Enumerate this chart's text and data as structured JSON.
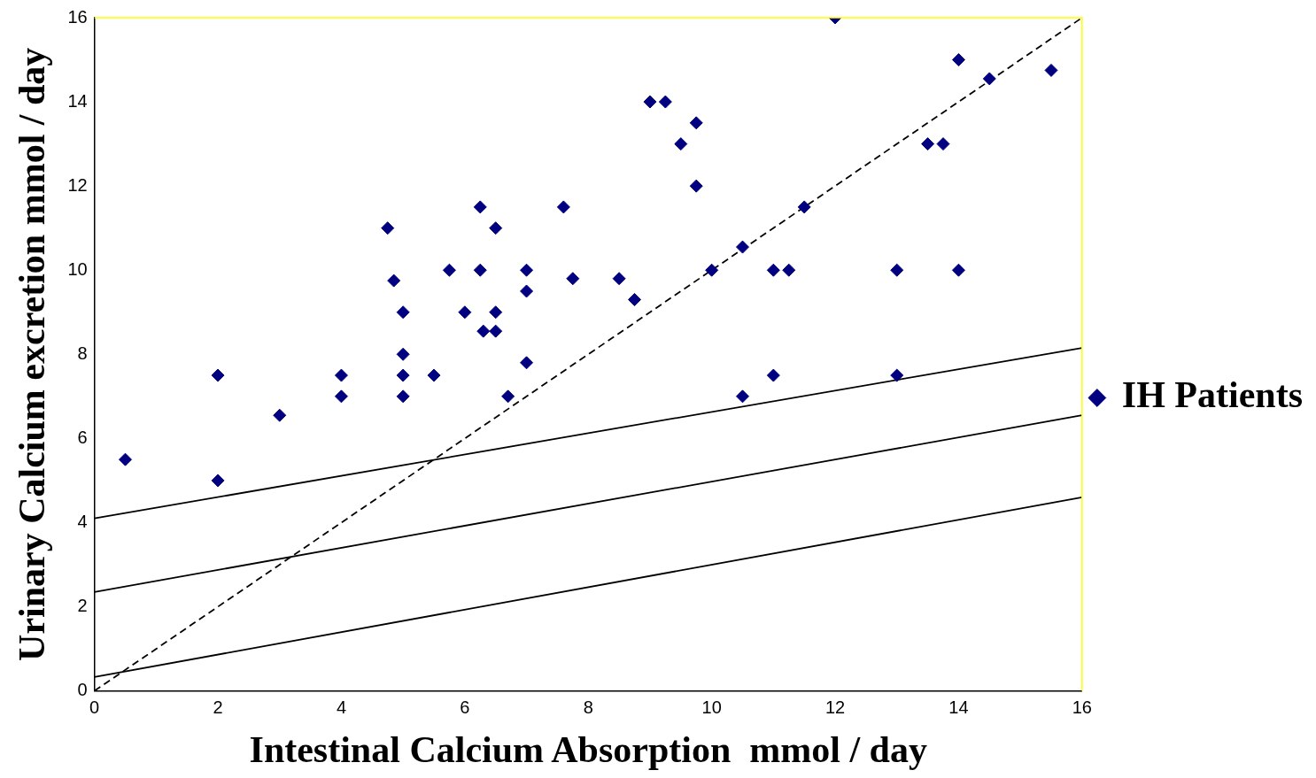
{
  "chart_data": {
    "type": "scatter",
    "xlabel": "Intestinal Calcium Absorption  mmol / day",
    "ylabel": "Urinary Calcium excretion mmol / day",
    "xlim": [
      0,
      16
    ],
    "xticks": [
      0,
      2,
      4,
      6,
      8,
      10,
      12,
      14,
      16
    ],
    "ylim": [
      0,
      16
    ],
    "yticks": [
      0,
      2,
      4,
      6,
      8,
      10,
      12,
      14,
      16
    ],
    "grid": false,
    "legend": "right",
    "marker": "diamond",
    "series": [
      {
        "name": "IH Patients",
        "color": "#000080",
        "x": [
          0.5,
          2,
          2,
          3,
          4,
          4,
          4.75,
          4.85,
          5,
          5,
          5,
          5,
          5.5,
          5.75,
          6,
          6.25,
          6.25,
          6.3,
          6.5,
          6.5,
          6.5,
          6.7,
          7,
          7,
          7,
          7.6,
          7.75,
          8.5,
          8.75,
          9,
          9.25,
          9.5,
          9.75,
          9.75,
          10,
          10.5,
          10.5,
          11,
          11,
          11.25,
          11.5,
          12,
          13,
          13,
          13.5,
          13.75,
          14,
          14,
          14.5,
          15.5
        ],
        "values": [
          5.5,
          5,
          7.5,
          6.55,
          7,
          7.5,
          11,
          9.75,
          9,
          8,
          7.5,
          7,
          7.5,
          10,
          9,
          11.5,
          10,
          8.55,
          11,
          9,
          8.55,
          7,
          10,
          9.5,
          7.8,
          11.5,
          9.8,
          9.8,
          9.3,
          14,
          14,
          13,
          13.5,
          12,
          10,
          10.55,
          7,
          10,
          7.5,
          10,
          11.5,
          16,
          10,
          7.5,
          13,
          13,
          15,
          10,
          14.55,
          14.75
        ]
      },
      {
        "type": "line",
        "color": "#000000",
        "line_style": "solid",
        "marker": "none",
        "x": [
          0,
          16
        ],
        "values": [
          4.1,
          8.15
        ]
      },
      {
        "type": "line",
        "color": "#000000",
        "line_style": "solid",
        "marker": "none",
        "x": [
          0,
          16
        ],
        "values": [
          2.35,
          6.55
        ]
      },
      {
        "type": "line",
        "color": "#000000",
        "line_style": "solid",
        "marker": "none",
        "x": [
          0,
          16
        ],
        "values": [
          0.33,
          4.6
        ]
      },
      {
        "type": "line",
        "color": "#000000",
        "line_style": "dashed",
        "marker": "none",
        "x": [
          0,
          16
        ],
        "values": [
          0,
          16
        ]
      }
    ]
  }
}
